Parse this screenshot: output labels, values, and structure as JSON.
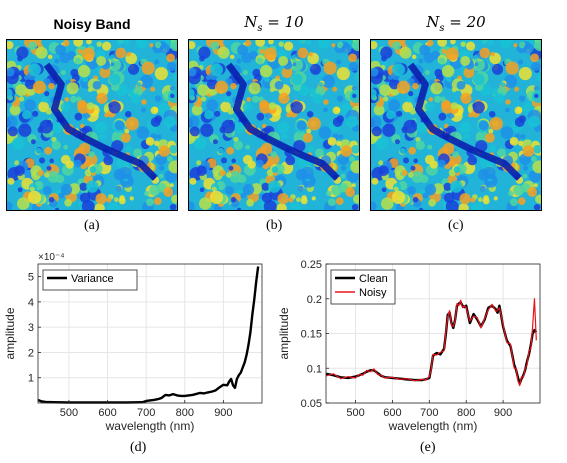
{
  "panels_top": [
    {
      "title": "Noisy Band",
      "caption": "(a)"
    },
    {
      "title": "N_s = 10",
      "caption": "(b)"
    },
    {
      "title": "N_s = 20",
      "caption": "(c)"
    }
  ],
  "captions_bottom": {
    "d": "(d)",
    "e": "(e)"
  },
  "colors": {
    "variance": "#000000",
    "clean": "#000000",
    "noisy": "#e8141c",
    "grid": "#e6e6e6"
  },
  "chart_data": [
    {
      "type": "line",
      "title": "",
      "xlabel": "wavelength (nm)",
      "ylabel": "amplitude",
      "exponent_label": "×10⁻⁴",
      "xlim": [
        420,
        1000
      ],
      "ylim": [
        0,
        5.5
      ],
      "xticks": [
        500,
        600,
        700,
        800,
        900
      ],
      "yticks": [
        1,
        2,
        3,
        4,
        5
      ],
      "legend": "top-left",
      "grid": true,
      "series": [
        {
          "name": "Variance",
          "x": [
            420,
            430,
            440,
            460,
            500,
            550,
            600,
            650,
            690,
            700,
            710,
            720,
            730,
            740,
            750,
            760,
            770,
            780,
            790,
            800,
            810,
            820,
            830,
            840,
            850,
            860,
            870,
            880,
            890,
            900,
            910,
            915,
            920,
            925,
            930,
            935,
            940,
            945,
            950,
            955,
            960,
            965,
            970,
            975,
            980,
            985,
            990
          ],
          "y": [
            0.12,
            0.06,
            0.04,
            0.03,
            0.02,
            0.02,
            0.02,
            0.02,
            0.03,
            0.08,
            0.1,
            0.12,
            0.15,
            0.2,
            0.32,
            0.3,
            0.35,
            0.3,
            0.28,
            0.28,
            0.3,
            0.32,
            0.36,
            0.4,
            0.38,
            0.42,
            0.45,
            0.5,
            0.62,
            0.72,
            0.7,
            0.85,
            0.95,
            0.7,
            0.6,
            0.95,
            1.1,
            1.2,
            1.4,
            1.6,
            1.9,
            2.3,
            2.8,
            3.5,
            4.1,
            4.8,
            5.4
          ]
        }
      ]
    },
    {
      "type": "line",
      "title": "",
      "xlabel": "wavelength (nm)",
      "ylabel": "amplitude",
      "xlim": [
        420,
        1000
      ],
      "ylim": [
        0.05,
        0.25
      ],
      "xticks": [
        500,
        600,
        700,
        800,
        900
      ],
      "yticks": [
        0.05,
        0.1,
        0.15,
        0.2,
        0.25
      ],
      "legend": "top-left",
      "grid": true,
      "series": [
        {
          "name": "Clean",
          "x": [
            420,
            440,
            460,
            480,
            500,
            510,
            520,
            530,
            540,
            550,
            560,
            570,
            580,
            600,
            620,
            640,
            660,
            680,
            690,
            700,
            705,
            710,
            720,
            730,
            740,
            745,
            750,
            755,
            760,
            765,
            770,
            775,
            780,
            785,
            790,
            795,
            800,
            810,
            820,
            830,
            840,
            850,
            860,
            870,
            880,
            885,
            890,
            900,
            910,
            920,
            930,
            935,
            940,
            945,
            950,
            955,
            960,
            965,
            970,
            975,
            980,
            985,
            990
          ],
          "y": [
            0.092,
            0.09,
            0.087,
            0.086,
            0.088,
            0.09,
            0.092,
            0.095,
            0.097,
            0.097,
            0.093,
            0.089,
            0.087,
            0.086,
            0.085,
            0.084,
            0.083,
            0.083,
            0.084,
            0.086,
            0.1,
            0.118,
            0.122,
            0.12,
            0.128,
            0.15,
            0.177,
            0.18,
            0.165,
            0.158,
            0.17,
            0.19,
            0.193,
            0.195,
            0.19,
            0.188,
            0.19,
            0.165,
            0.178,
            0.17,
            0.16,
            0.17,
            0.187,
            0.19,
            0.185,
            0.18,
            0.19,
            0.16,
            0.14,
            0.132,
            0.105,
            0.098,
            0.087,
            0.078,
            0.085,
            0.09,
            0.098,
            0.11,
            0.12,
            0.133,
            0.15,
            0.155,
            0.152
          ]
        },
        {
          "name": "Noisy",
          "x": [
            420,
            440,
            460,
            480,
            500,
            510,
            520,
            530,
            540,
            550,
            560,
            570,
            580,
            600,
            620,
            640,
            660,
            680,
            690,
            700,
            705,
            710,
            720,
            730,
            740,
            745,
            750,
            755,
            760,
            765,
            770,
            775,
            780,
            785,
            790,
            795,
            800,
            810,
            820,
            830,
            840,
            850,
            860,
            870,
            880,
            885,
            890,
            900,
            910,
            920,
            930,
            935,
            940,
            945,
            950,
            955,
            960,
            965,
            970,
            975,
            980,
            985,
            990
          ],
          "y": [
            0.089,
            0.092,
            0.085,
            0.088,
            0.086,
            0.091,
            0.09,
            0.097,
            0.095,
            0.099,
            0.091,
            0.09,
            0.086,
            0.087,
            0.084,
            0.085,
            0.082,
            0.084,
            0.083,
            0.088,
            0.098,
            0.12,
            0.119,
            0.123,
            0.125,
            0.153,
            0.174,
            0.183,
            0.162,
            0.16,
            0.168,
            0.193,
            0.19,
            0.198,
            0.187,
            0.19,
            0.187,
            0.168,
            0.175,
            0.173,
            0.158,
            0.172,
            0.184,
            0.192,
            0.182,
            0.183,
            0.187,
            0.163,
            0.137,
            0.135,
            0.1,
            0.1,
            0.082,
            0.075,
            0.088,
            0.087,
            0.1,
            0.105,
            0.125,
            0.128,
            0.16,
            0.2,
            0.14
          ]
        }
      ]
    }
  ]
}
